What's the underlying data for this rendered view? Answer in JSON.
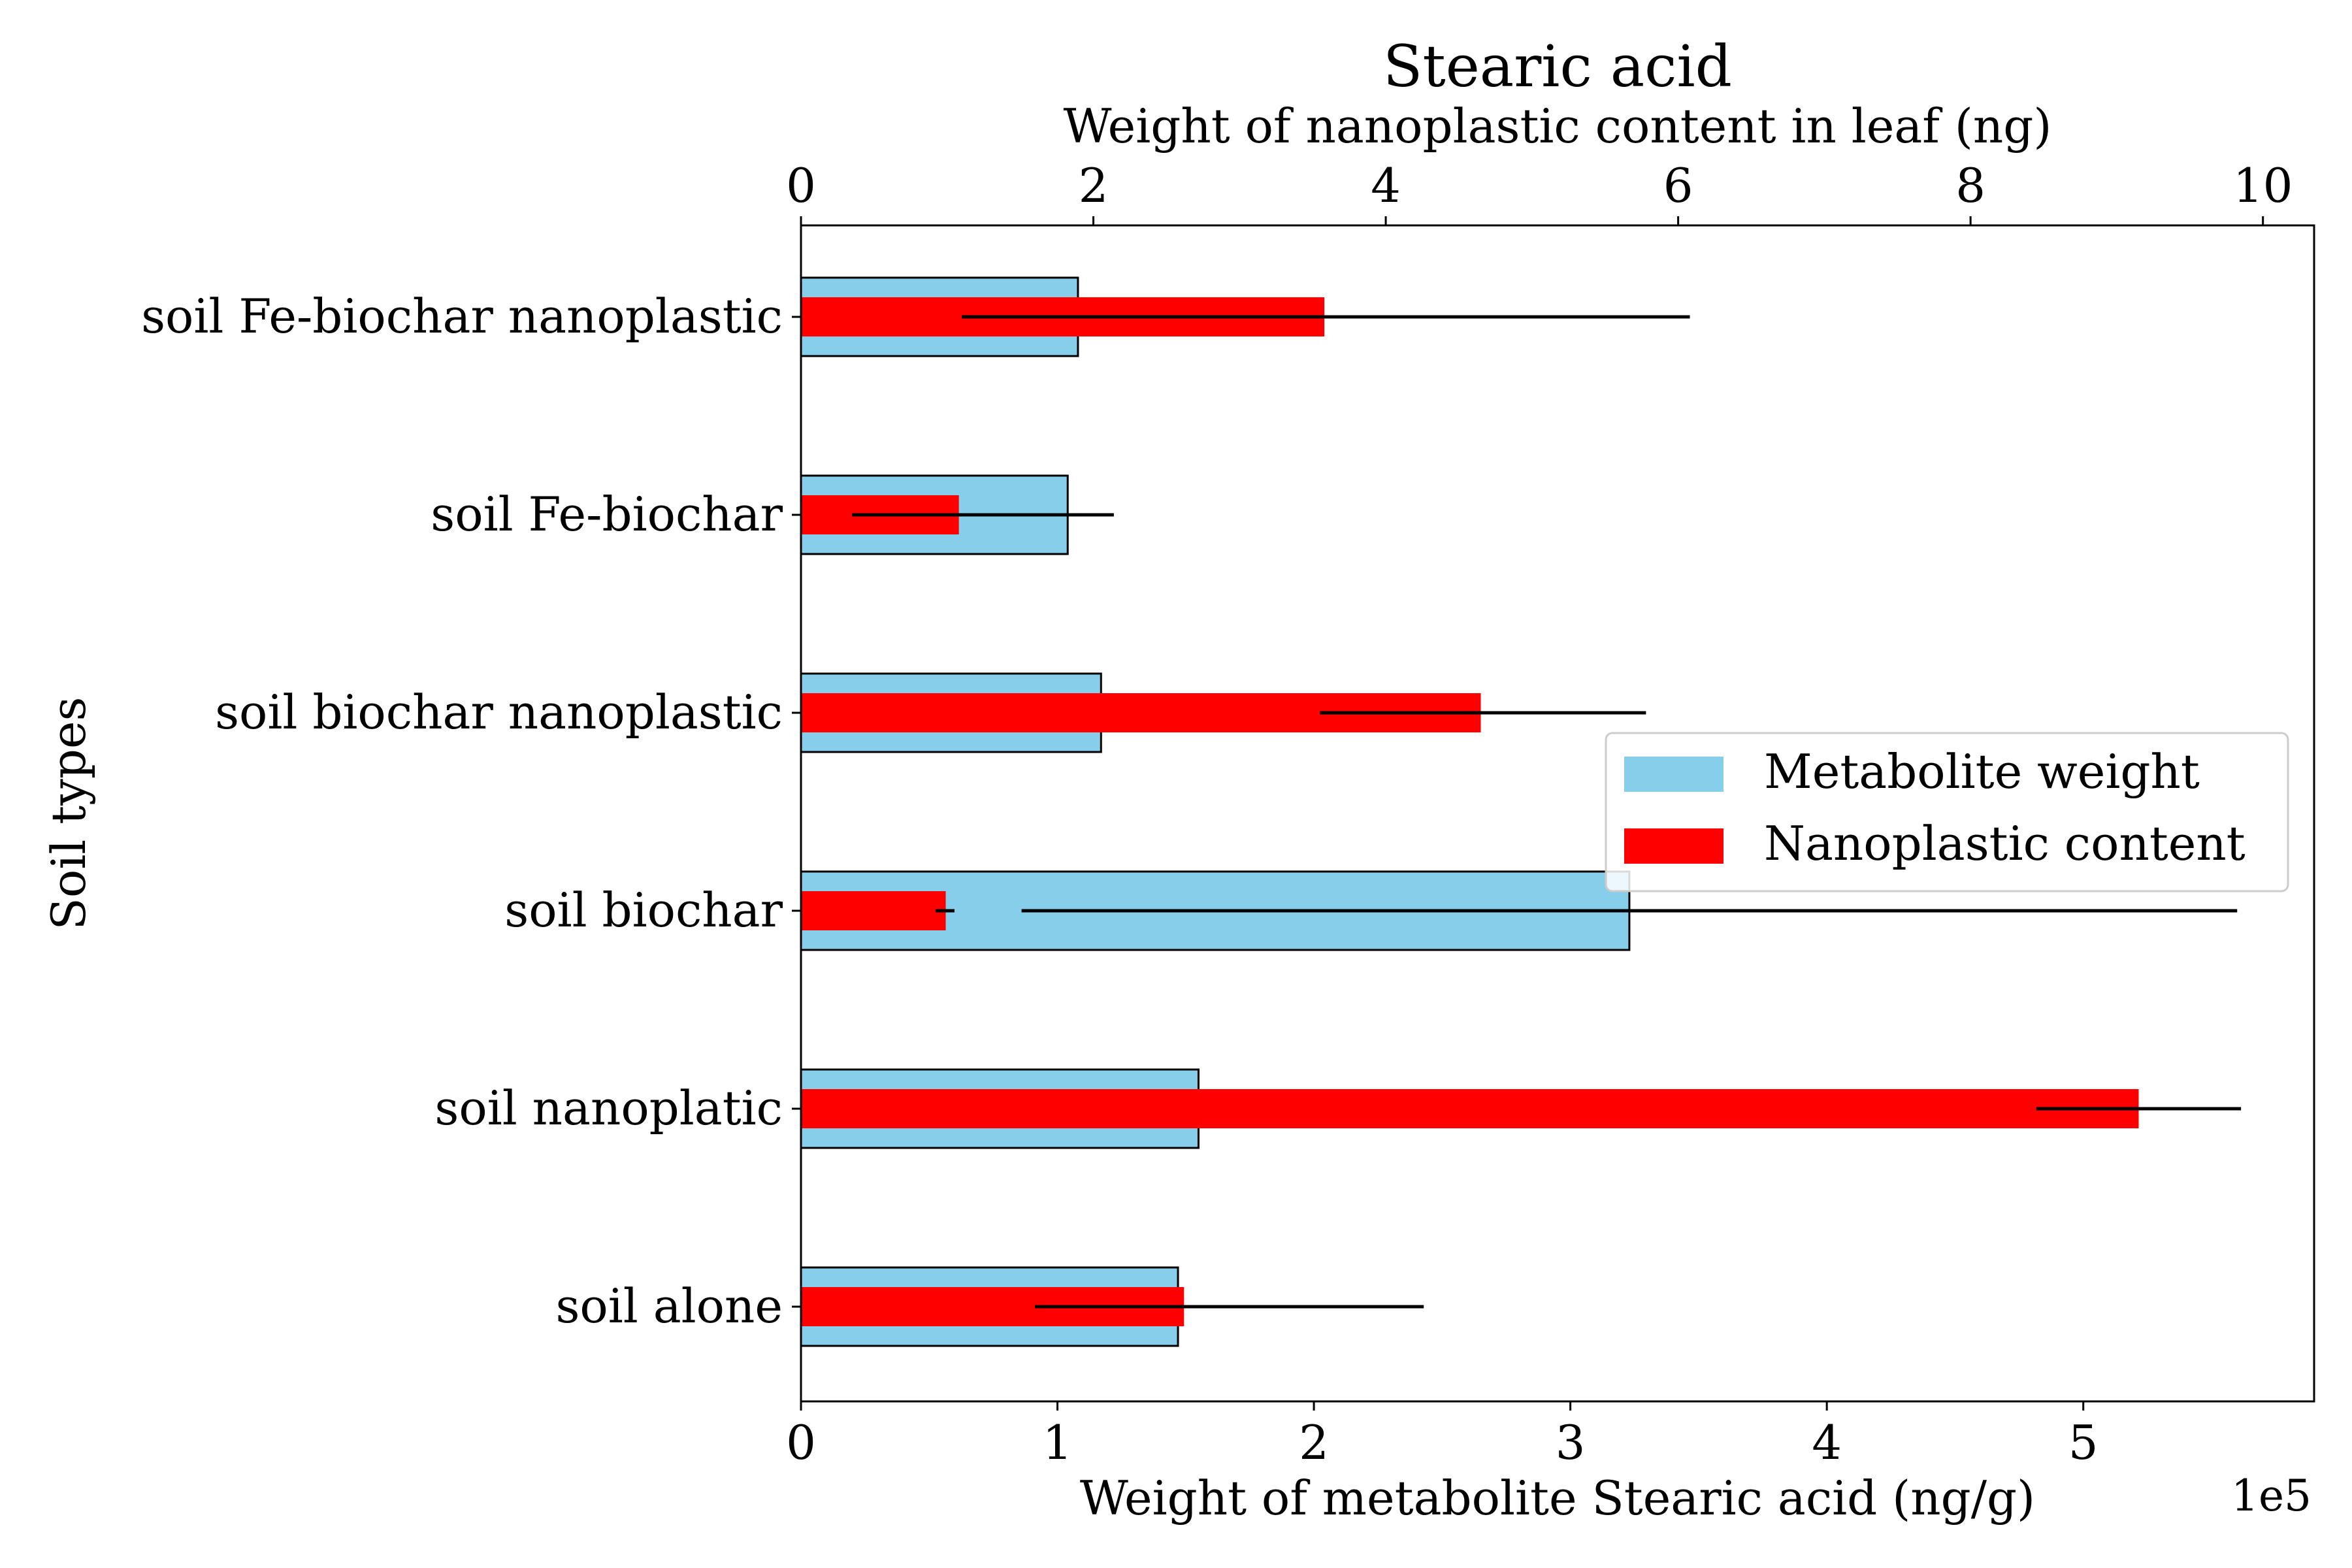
{
  "chart_data": {
    "type": "bar",
    "orientation": "horizontal",
    "title": "Stearic acid",
    "title_color": "#a52a2a",
    "xlabel_bottom": "Weight of metabolite Stearic acid (ng/g)",
    "xlabel_top": "Weight of nanoplastic content in leaf (ng)",
    "ylabel": "Soil types",
    "offset_text": "1e5",
    "bottom_axis": {
      "min": 0,
      "max": 5.9,
      "ticks": [
        0,
        1,
        2,
        3,
        4,
        5
      ],
      "tick_labels": [
        "0",
        "1",
        "2",
        "3",
        "4",
        "5"
      ]
    },
    "top_axis": {
      "min": 0,
      "max": 10.35,
      "ticks": [
        0,
        2,
        4,
        6,
        8,
        10
      ],
      "tick_labels": [
        "0",
        "2",
        "4",
        "6",
        "8",
        "10"
      ]
    },
    "categories": [
      "soil Fe-biochar nanoplastic",
      "soil Fe-biochar",
      "soil biochar nanoplastic",
      "soil biochar",
      "soil nanoplatic",
      "soil alone"
    ],
    "series": [
      {
        "name": "Metabolite weight",
        "axis": "bottom",
        "color": "#87ceeb",
        "values": [
          1.08,
          1.04,
          1.17,
          3.23,
          1.55,
          1.47
        ],
        "error_low": [
          null,
          null,
          null,
          0.86,
          null,
          null
        ],
        "error_high": [
          null,
          null,
          null,
          5.6,
          null,
          null
        ]
      },
      {
        "name": "Nanoplastic content",
        "axis": "top",
        "color": "#ff0000",
        "values": [
          3.58,
          1.08,
          4.65,
          0.99,
          9.15,
          2.62
        ],
        "error_low": [
          1.1,
          0.35,
          3.55,
          0.92,
          8.45,
          1.6
        ],
        "error_high": [
          6.08,
          2.14,
          5.78,
          1.05,
          9.85,
          4.26
        ]
      }
    ],
    "legend": {
      "position": "right",
      "entries": [
        "Metabolite weight",
        "Nanoplastic content"
      ]
    },
    "grid": false
  }
}
